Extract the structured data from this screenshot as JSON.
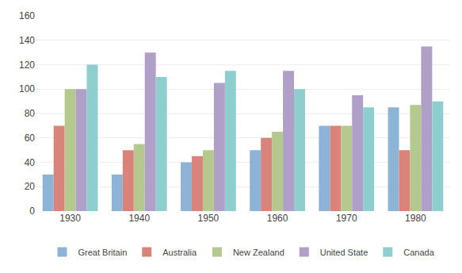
{
  "chart_data": {
    "type": "bar",
    "categories": [
      "1930",
      "1940",
      "1950",
      "1960",
      "1970",
      "1980"
    ],
    "series": [
      {
        "name": "Great Britain",
        "color": "#8db4d6",
        "values": [
          30,
          30,
          40,
          50,
          70,
          85
        ]
      },
      {
        "name": "Australia",
        "color": "#d9837a",
        "values": [
          70,
          50,
          45,
          60,
          70,
          50
        ]
      },
      {
        "name": "New Zealand",
        "color": "#b5c98e",
        "values": [
          100,
          55,
          50,
          65,
          70,
          87
        ]
      },
      {
        "name": "United State",
        "color": "#b0a0c8",
        "values": [
          100,
          130,
          105,
          115,
          95,
          135
        ]
      },
      {
        "name": "Canada",
        "color": "#8ecece",
        "values": [
          120,
          110,
          115,
          100,
          85,
          90
        ]
      }
    ],
    "ylim": [
      0,
      160
    ],
    "yticks": [
      0,
      20,
      40,
      60,
      80,
      100,
      120,
      140,
      160
    ],
    "grid": true,
    "legend": "bottom"
  }
}
